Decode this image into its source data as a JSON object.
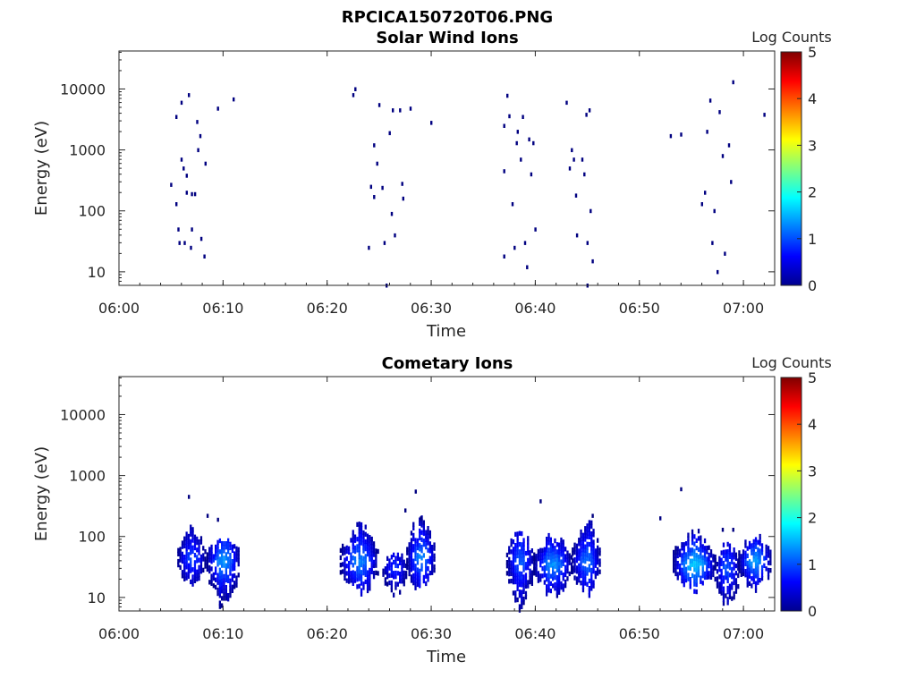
{
  "figure": {
    "title": "RPCICA150720T06.PNG"
  },
  "colors": {
    "colormap": "jet",
    "axis": "#262626"
  },
  "chart_data": [
    {
      "type": "heatmap",
      "title": "Solar Wind Ions",
      "xlabel": "Time",
      "ylabel": "Energy (eV)",
      "xscale": "time",
      "yscale": "log",
      "xlim": [
        "06:00",
        "07:03"
      ],
      "ylim": [
        6,
        42000
      ],
      "xticks": [
        "06:00",
        "06:10",
        "06:20",
        "06:30",
        "06:40",
        "06:50",
        "07:00"
      ],
      "yticks": [
        "10",
        "100",
        "1000",
        "10000"
      ],
      "colorbar": {
        "label": "Log Counts",
        "ticks": [
          "0",
          "1",
          "2",
          "3",
          "4",
          "5"
        ],
        "range": [
          0,
          5
        ]
      },
      "points": [
        [
          "06:05",
          270,
          0
        ],
        [
          "06:05.5",
          130,
          0
        ],
        [
          "06:05.5",
          3500,
          0
        ],
        [
          "06:05.7",
          50,
          0
        ],
        [
          "06:05.8",
          30,
          0
        ],
        [
          "06:06",
          6000,
          0
        ],
        [
          "06:06",
          700,
          0
        ],
        [
          "06:06.2",
          500,
          0
        ],
        [
          "06:06.3",
          30,
          0
        ],
        [
          "06:06.5",
          380,
          0
        ],
        [
          "06:06.5",
          200,
          0
        ],
        [
          "06:06.7",
          8000,
          0
        ],
        [
          "06:06.9",
          25,
          0
        ],
        [
          "06:07",
          190,
          0
        ],
        [
          "06:07",
          50,
          0
        ],
        [
          "06:07.3",
          190,
          0
        ],
        [
          "06:07.5",
          2900,
          0
        ],
        [
          "06:07.6",
          1000,
          0
        ],
        [
          "06:07.8",
          1700,
          0
        ],
        [
          "06:07.9",
          35,
          0
        ],
        [
          "06:08.2",
          18,
          0
        ],
        [
          "06:08.3",
          600,
          0
        ],
        [
          "06:09.5",
          4800,
          0
        ],
        [
          "06:11",
          6800,
          0
        ],
        [
          "06:22.5",
          8000,
          0
        ],
        [
          "06:22.7",
          10000,
          0
        ],
        [
          "06:24",
          25,
          0
        ],
        [
          "06:24.2",
          250,
          0
        ],
        [
          "06:24.5",
          170,
          0
        ],
        [
          "06:24.5",
          1200,
          0
        ],
        [
          "06:24.8",
          600,
          0
        ],
        [
          "06:25",
          5500,
          0
        ],
        [
          "06:25.3",
          240,
          0
        ],
        [
          "06:25.5",
          30,
          0
        ],
        [
          "06:25.7",
          6,
          0
        ],
        [
          "06:26",
          1900,
          0
        ],
        [
          "06:26.2",
          90,
          0
        ],
        [
          "06:26.3",
          4500,
          0
        ],
        [
          "06:26.5",
          40,
          0
        ],
        [
          "06:27",
          4500,
          0
        ],
        [
          "06:27.2",
          280,
          0
        ],
        [
          "06:27.3",
          160,
          0
        ],
        [
          "06:28",
          4800,
          0
        ],
        [
          "06:30",
          2800,
          0
        ],
        [
          "06:37",
          2500,
          0
        ],
        [
          "06:37",
          450,
          0
        ],
        [
          "06:37",
          18,
          0
        ],
        [
          "06:37.3",
          7800,
          0
        ],
        [
          "06:37.5",
          3600,
          0
        ],
        [
          "06:37.8",
          130,
          0
        ],
        [
          "06:38",
          25,
          0
        ],
        [
          "06:38.2",
          1300,
          0
        ],
        [
          "06:38.3",
          2000,
          0
        ],
        [
          "06:38.6",
          700,
          0
        ],
        [
          "06:38.8",
          3500,
          0
        ],
        [
          "06:39",
          30,
          0
        ],
        [
          "06:39.2",
          12,
          0
        ],
        [
          "06:39.4",
          1500,
          0
        ],
        [
          "06:39.6",
          400,
          0
        ],
        [
          "06:39.8",
          1300,
          0
        ],
        [
          "06:40",
          50,
          0
        ],
        [
          "06:43",
          6000,
          0
        ],
        [
          "06:43.3",
          500,
          0
        ],
        [
          "06:43.5",
          1000,
          0
        ],
        [
          "06:43.7",
          700,
          0
        ],
        [
          "06:43.9",
          180,
          0
        ],
        [
          "06:44",
          40,
          0
        ],
        [
          "06:44.5",
          700,
          0
        ],
        [
          "06:44.7",
          400,
          0
        ],
        [
          "06:44.9",
          3800,
          0
        ],
        [
          "06:45",
          30,
          0
        ],
        [
          "06:45.2",
          4500,
          0
        ],
        [
          "06:45.3",
          100,
          0
        ],
        [
          "06:45.5",
          15,
          0
        ],
        [
          "06:45",
          6,
          0
        ],
        [
          "06:53",
          1700,
          0
        ],
        [
          "06:54",
          1800,
          0
        ],
        [
          "06:56",
          130,
          0
        ],
        [
          "06:56.3",
          200,
          0
        ],
        [
          "06:56.5",
          2000,
          0
        ],
        [
          "06:56.8",
          6500,
          0
        ],
        [
          "06:57",
          30,
          0
        ],
        [
          "06:57.2",
          100,
          0
        ],
        [
          "06:57.5",
          10,
          0
        ],
        [
          "06:57.7",
          4200,
          0
        ],
        [
          "06:58",
          800,
          0
        ],
        [
          "06:58.2",
          20,
          0
        ],
        [
          "06:58.6",
          1200,
          0
        ],
        [
          "06:58.8",
          300,
          0
        ],
        [
          "06:59",
          13000,
          0
        ],
        [
          "07:02",
          3800,
          0
        ]
      ]
    },
    {
      "type": "heatmap",
      "title": "Cometary Ions",
      "xlabel": "Time",
      "ylabel": "Energy (eV)",
      "xscale": "time",
      "yscale": "log",
      "xlim": [
        "06:00",
        "07:03"
      ],
      "ylim": [
        6,
        42000
      ],
      "xticks": [
        "06:00",
        "06:10",
        "06:20",
        "06:30",
        "06:40",
        "06:50",
        "07:00"
      ],
      "yticks": [
        "10",
        "100",
        "1000",
        "10000"
      ],
      "colorbar": {
        "label": "Log Counts",
        "ticks": [
          "0",
          "1",
          "2",
          "3",
          "4",
          "5"
        ],
        "range": [
          0,
          5
        ]
      },
      "bursts": [
        {
          "t_start": "06:05.6",
          "t_end": "06:08.2",
          "e_min": 15,
          "e_max": 150,
          "peak_e": 45,
          "peak": 0.9
        },
        {
          "t_start": "06:08.4",
          "t_end": "06:11.5",
          "e_min": 6,
          "e_max": 120,
          "peak_e": 40,
          "peak": 1.3
        },
        {
          "t_start": "06:21.2",
          "t_end": "06:24.8",
          "e_min": 10,
          "e_max": 180,
          "peak_e": 40,
          "peak": 1.2
        },
        {
          "t_start": "06:25.3",
          "t_end": "06:27.6",
          "e_min": 10,
          "e_max": 60,
          "peak_e": 30,
          "peak": 0.8
        },
        {
          "t_start": "06:27.6",
          "t_end": "06:30.3",
          "e_min": 10,
          "e_max": 250,
          "peak_e": 45,
          "peak": 1.2
        },
        {
          "t_start": "06:37.2",
          "t_end": "06:39.8",
          "e_min": 6,
          "e_max": 160,
          "peak_e": 40,
          "peak": 1.0
        },
        {
          "t_start": "06:39.8",
          "t_end": "06:43.4",
          "e_min": 10,
          "e_max": 120,
          "peak_e": 35,
          "peak": 1.3
        },
        {
          "t_start": "06:43.5",
          "t_end": "06:46.2",
          "e_min": 10,
          "e_max": 200,
          "peak_e": 40,
          "peak": 1.1
        },
        {
          "t_start": "06:53.2",
          "t_end": "06:57.2",
          "e_min": 12,
          "e_max": 150,
          "peak_e": 35,
          "peak": 1.6
        },
        {
          "t_start": "06:57.2",
          "t_end": "06:59.5",
          "e_min": 6,
          "e_max": 90,
          "peak_e": 30,
          "peak": 1.0
        },
        {
          "t_start": "06:59.5",
          "t_end": "07:02.6",
          "e_min": 12,
          "e_max": 110,
          "peak_e": 40,
          "peak": 1.4
        }
      ],
      "points": [
        [
          "06:06.7",
          450,
          0
        ],
        [
          "06:08.5",
          220,
          0
        ],
        [
          "06:09.5",
          190,
          0
        ],
        [
          "06:28.5",
          550,
          0
        ],
        [
          "06:27.5",
          270,
          0
        ],
        [
          "06:29",
          200,
          0
        ],
        [
          "06:40.5",
          380,
          0
        ],
        [
          "06:45.5",
          220,
          0
        ],
        [
          "06:52",
          200,
          0
        ],
        [
          "06:54",
          600,
          0
        ],
        [
          "06:58",
          130,
          0
        ],
        [
          "06:59",
          130,
          0
        ]
      ]
    }
  ]
}
